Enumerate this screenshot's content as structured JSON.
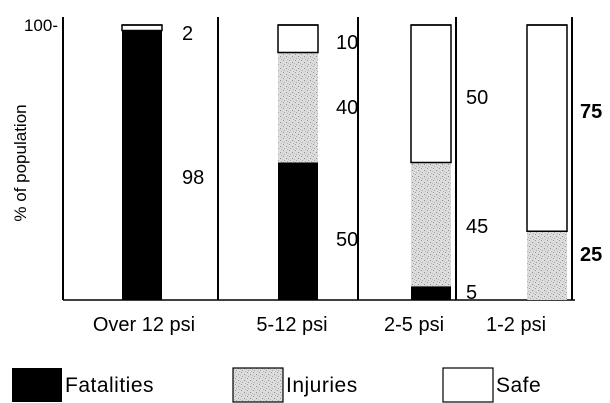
{
  "chart_data": {
    "type": "bar",
    "stacked": true,
    "ylabel": "% of population",
    "ylim": [
      0,
      100
    ],
    "y_ticks": [
      {
        "value": 100,
        "label": "100-"
      }
    ],
    "categories": [
      "Over 12 psi",
      "5-12 psi",
      "2-5 psi",
      "1-2 psi"
    ],
    "series": [
      {
        "name": "Fatalities",
        "color": "#000000",
        "pattern": "solid",
        "values": [
          98,
          50,
          5,
          0
        ]
      },
      {
        "name": "Injuries",
        "color": "#d4d4d4",
        "pattern": "stipple",
        "values": [
          0,
          40,
          45,
          25
        ]
      },
      {
        "name": "Safe",
        "color": "#ffffff",
        "pattern": "outline",
        "values": [
          2,
          10,
          50,
          75
        ]
      }
    ],
    "value_labels": [
      {
        "category": 0,
        "series": "Safe",
        "text": "2",
        "bold": false
      },
      {
        "category": 0,
        "series": "Fatalities",
        "text": "98",
        "bold": false
      },
      {
        "category": 1,
        "series": "Safe",
        "text": "10",
        "bold": false
      },
      {
        "category": 1,
        "series": "Injuries",
        "text": "40",
        "bold": false
      },
      {
        "category": 1,
        "series": "Fatalities",
        "text": "50",
        "bold": false
      },
      {
        "category": 2,
        "series": "Safe",
        "text": "50",
        "bold": false
      },
      {
        "category": 2,
        "series": "Injuries",
        "text": "45",
        "bold": false
      },
      {
        "category": 2,
        "series": "Fatalities",
        "text": "5",
        "bold": false
      },
      {
        "category": 3,
        "series": "Safe",
        "text": "75",
        "bold": true
      },
      {
        "category": 3,
        "series": "Injuries",
        "text": "25",
        "bold": true
      }
    ],
    "legend": {
      "placement": "bottom"
    },
    "grid": false
  }
}
